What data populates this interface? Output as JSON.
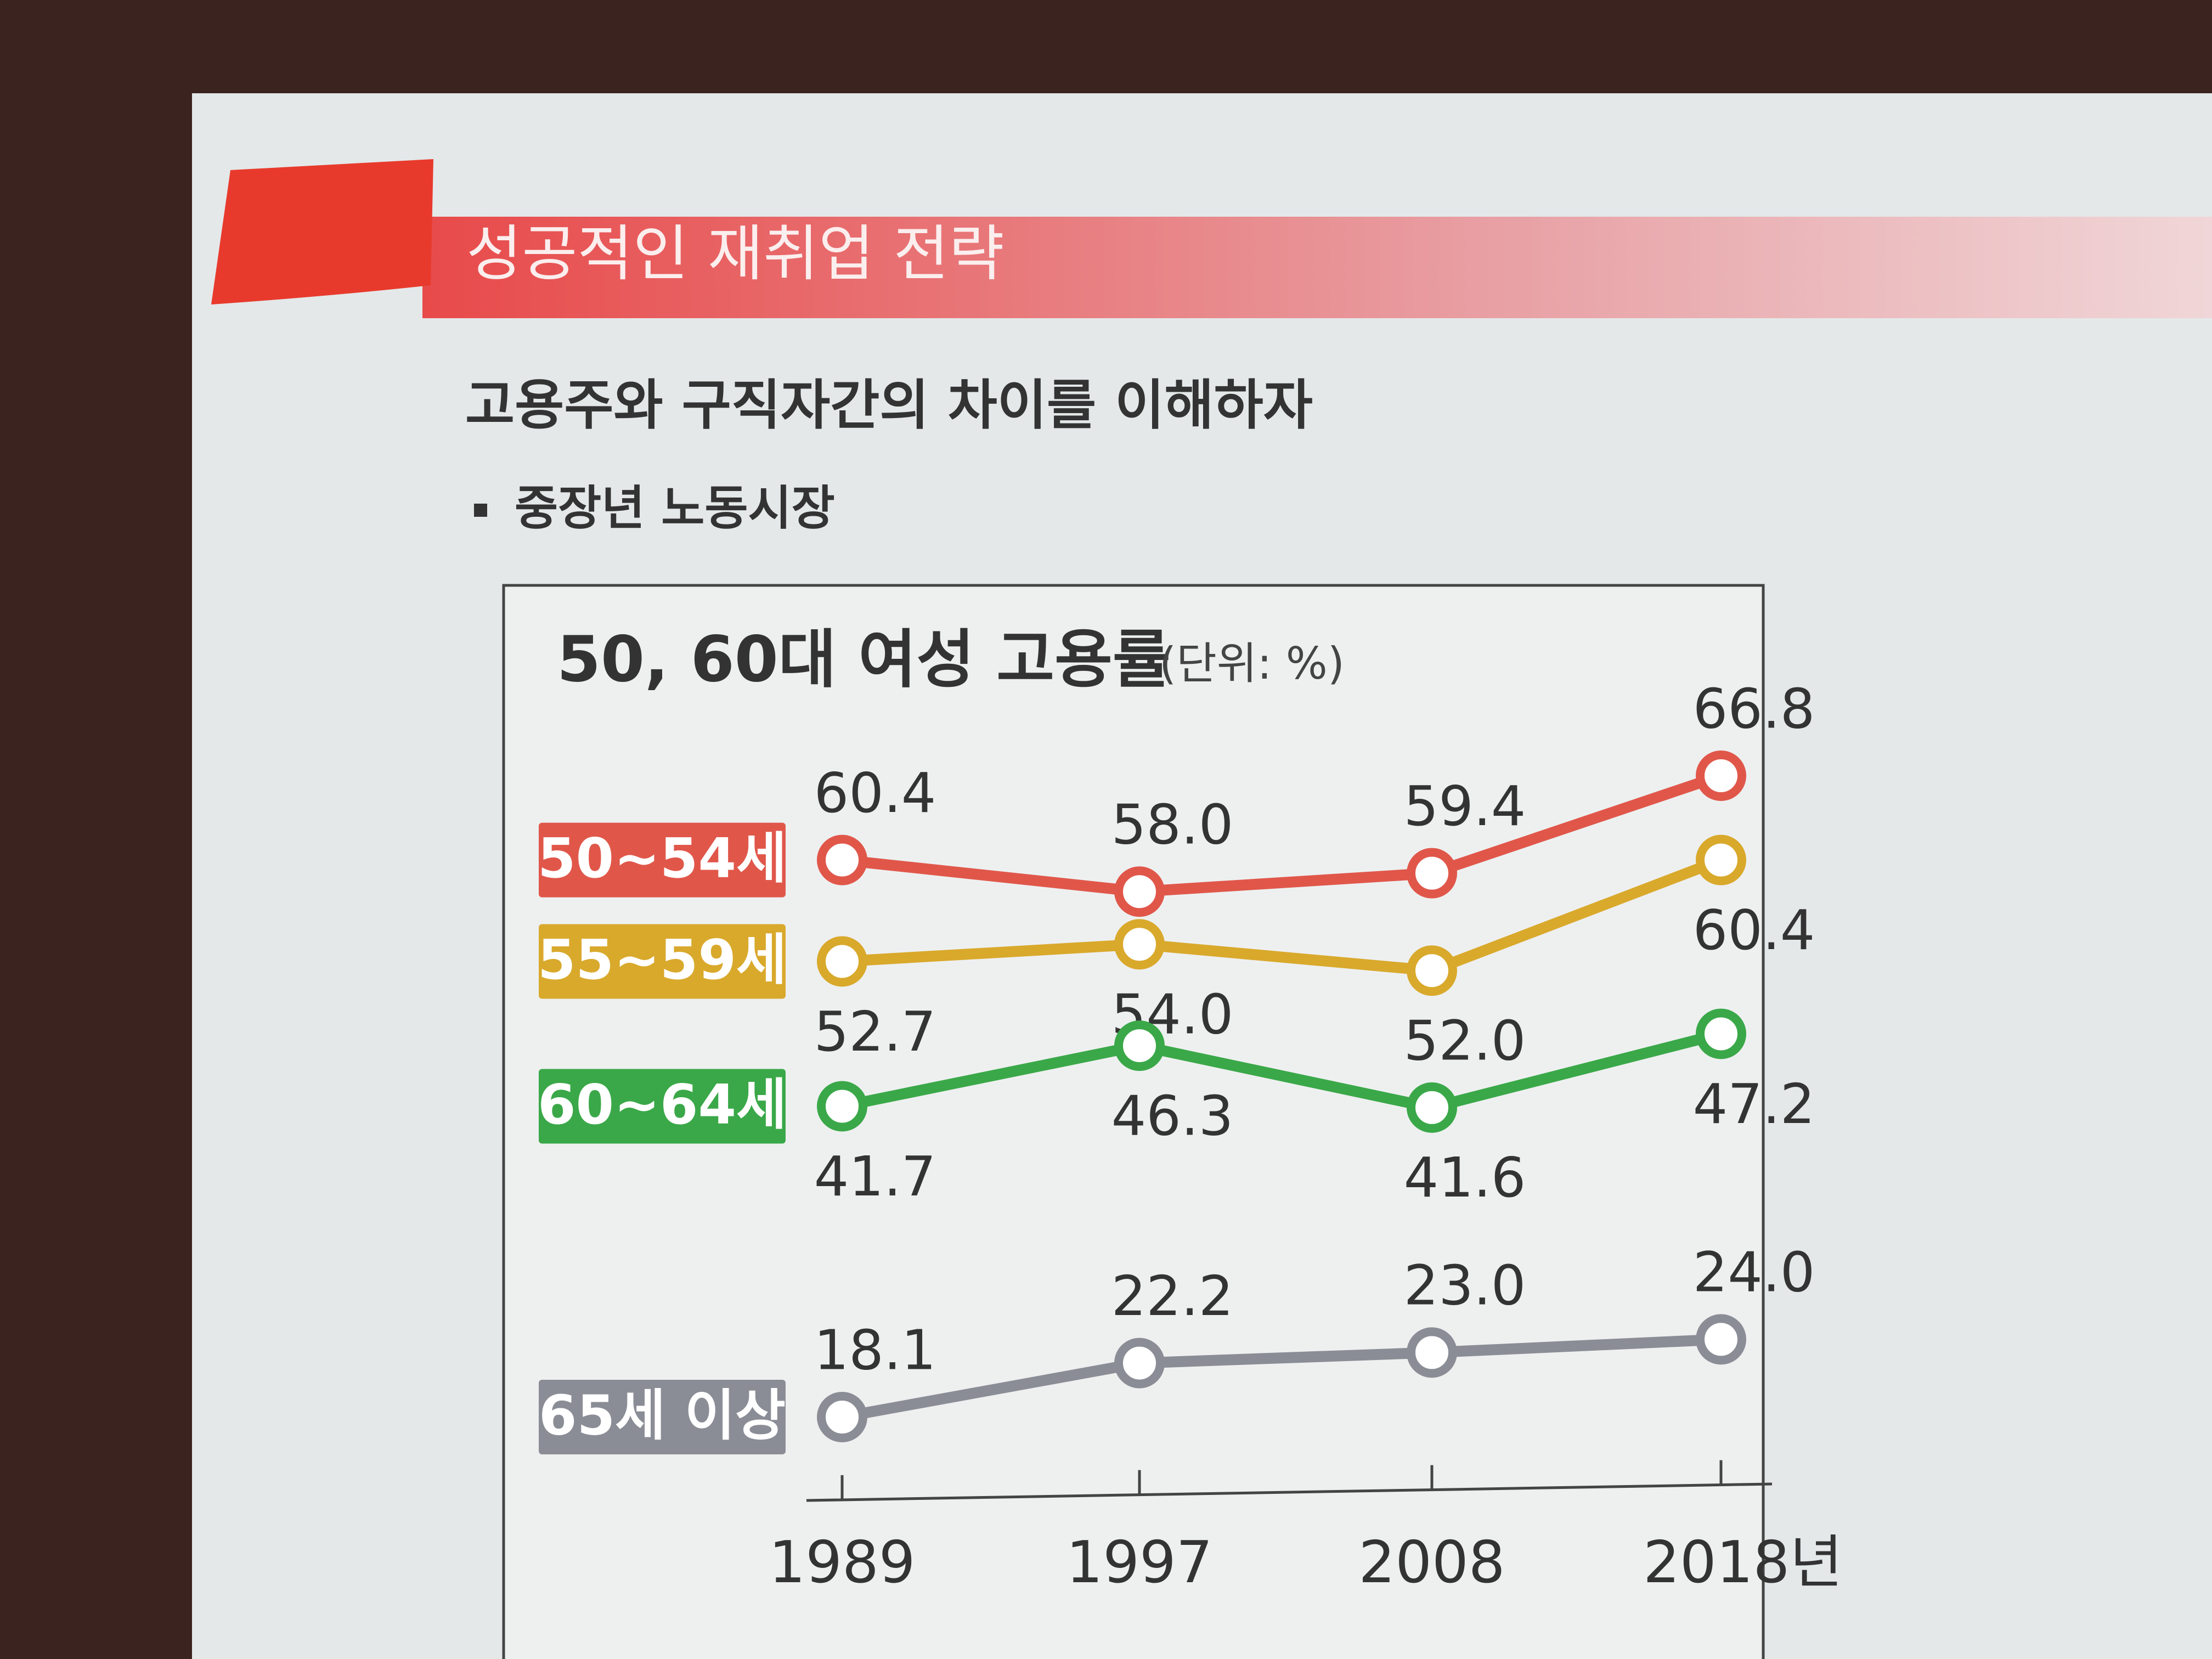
{
  "header": {
    "title": "성공적인 재취업 전략"
  },
  "subtitle": "고용주와 구직자간의 차이를 이해하자",
  "bullet": "중장년 노동시장",
  "chart_data": {
    "type": "line",
    "title": "50, 60대 여성 고용률",
    "unit": "(단위: %)",
    "categories": [
      "1989",
      "1997",
      "2008",
      "2018년"
    ],
    "series": [
      {
        "name": "50~54세",
        "color": "#e0574a",
        "values": [
          60.4,
          58.0,
          59.4,
          66.8
        ],
        "value_labels": [
          "60.4",
          "58.0",
          "59.4",
          "66.8"
        ]
      },
      {
        "name": "55~59세",
        "color": "#d9a92c",
        "values": [
          52.7,
          54.0,
          52.0,
          60.4
        ],
        "value_labels": [
          "52.7",
          "54.0",
          "52.0",
          "60.4"
        ]
      },
      {
        "name": "60~64세",
        "color": "#3aa848",
        "values": [
          41.7,
          46.3,
          41.6,
          47.2
        ],
        "value_labels": [
          "41.7",
          "46.3",
          "41.6",
          "47.2"
        ]
      },
      {
        "name": "65세 이상",
        "color": "#8b8d96",
        "values": [
          18.1,
          22.2,
          23.0,
          24.0
        ],
        "value_labels": [
          "18.1",
          "22.2",
          "23.0",
          "24.0"
        ]
      }
    ]
  }
}
